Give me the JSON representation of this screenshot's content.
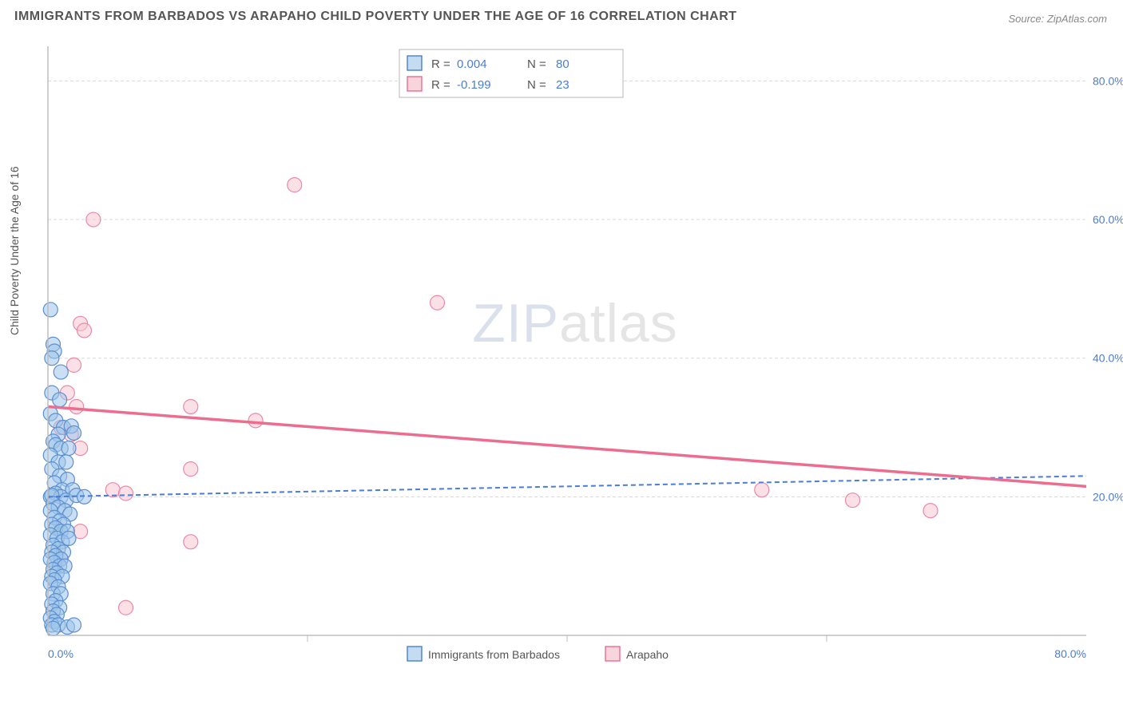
{
  "title": "IMMIGRANTS FROM BARBADOS VS ARAPAHO CHILD POVERTY UNDER THE AGE OF 16 CORRELATION CHART",
  "source": "Source: ZipAtlas.com",
  "y_axis_label": "Child Poverty Under the Age of 16",
  "watermark": {
    "a": "ZIP",
    "b": "atlas"
  },
  "chart": {
    "type": "scatter",
    "xlim": [
      0,
      80
    ],
    "ylim": [
      0,
      85
    ],
    "x_ticks": [
      0,
      80
    ],
    "x_tick_labels": [
      "0.0%",
      "80.0%"
    ],
    "x_minor_ticks": [
      20,
      40,
      60
    ],
    "y_ticks": [
      20,
      40,
      60,
      80
    ],
    "y_tick_labels": [
      "20.0%",
      "40.0%",
      "60.0%",
      "80.0%"
    ],
    "background_color": "#ffffff",
    "grid_color": "#d8d8d8",
    "axis_color": "#bdbdbd",
    "marker_radius": 9,
    "trend_blue": {
      "y_at_x0": 20.0,
      "y_at_x80": 23.0,
      "color": "#4a7dd6",
      "dash": true,
      "width": 2
    },
    "trend_pink": {
      "y_at_x0": 33.0,
      "y_at_x80": 21.5,
      "color": "#ec6d8f",
      "dash": false,
      "width": 3.5
    },
    "series": [
      {
        "name": "Immigrants from Barbados",
        "color_fill": "#9ec4ea",
        "color_stroke": "#5b8fd0",
        "R": "0.004",
        "N": "80",
        "points": [
          [
            0.2,
            47
          ],
          [
            0.4,
            42
          ],
          [
            0.5,
            41
          ],
          [
            0.3,
            40
          ],
          [
            1.0,
            38
          ],
          [
            0.3,
            35
          ],
          [
            0.9,
            34
          ],
          [
            0.2,
            32
          ],
          [
            0.6,
            31
          ],
          [
            1.2,
            30
          ],
          [
            1.8,
            30.2
          ],
          [
            0.8,
            29
          ],
          [
            2.0,
            29.2
          ],
          [
            0.4,
            28
          ],
          [
            0.6,
            27.5
          ],
          [
            1.0,
            27
          ],
          [
            1.6,
            27
          ],
          [
            0.2,
            26
          ],
          [
            0.8,
            25
          ],
          [
            1.4,
            25
          ],
          [
            0.3,
            24
          ],
          [
            0.9,
            23
          ],
          [
            1.5,
            22.5
          ],
          [
            0.5,
            22
          ],
          [
            1.1,
            21
          ],
          [
            1.9,
            21
          ],
          [
            0.2,
            20
          ],
          [
            0.6,
            20.5
          ],
          [
            1.0,
            20
          ],
          [
            1.4,
            19.5
          ],
          [
            2.2,
            20.2
          ],
          [
            2.8,
            20
          ],
          [
            0.3,
            20.2
          ],
          [
            0.4,
            19
          ],
          [
            0.8,
            18.5
          ],
          [
            1.3,
            18
          ],
          [
            0.2,
            18
          ],
          [
            1.7,
            17.5
          ],
          [
            0.5,
            17
          ],
          [
            0.9,
            16.5
          ],
          [
            1.2,
            16
          ],
          [
            0.3,
            16
          ],
          [
            0.6,
            15.5
          ],
          [
            1.0,
            15
          ],
          [
            1.5,
            15
          ],
          [
            0.2,
            14.5
          ],
          [
            0.7,
            14
          ],
          [
            1.1,
            13.5
          ],
          [
            1.6,
            14
          ],
          [
            0.4,
            13
          ],
          [
            0.8,
            12.5
          ],
          [
            1.2,
            12
          ],
          [
            0.3,
            12
          ],
          [
            0.6,
            11.5
          ],
          [
            1.0,
            11
          ],
          [
            0.2,
            11
          ],
          [
            0.5,
            10.5
          ],
          [
            0.9,
            10
          ],
          [
            1.3,
            10
          ],
          [
            0.4,
            9.5
          ],
          [
            0.7,
            9
          ],
          [
            0.3,
            8.5
          ],
          [
            1.1,
            8.5
          ],
          [
            0.5,
            8
          ],
          [
            0.2,
            7.5
          ],
          [
            0.8,
            7
          ],
          [
            0.4,
            6
          ],
          [
            1.0,
            6
          ],
          [
            0.6,
            5
          ],
          [
            0.3,
            4.5
          ],
          [
            0.9,
            4
          ],
          [
            0.4,
            3.5
          ],
          [
            0.7,
            3
          ],
          [
            0.2,
            2.5
          ],
          [
            0.5,
            2
          ],
          [
            0.3,
            1.5
          ],
          [
            0.8,
            1.5
          ],
          [
            0.4,
            1
          ],
          [
            1.5,
            1.2
          ],
          [
            2.0,
            1.5
          ]
        ]
      },
      {
        "name": "Arapaho",
        "color_fill": "#f7c9d4",
        "color_stroke": "#e98aa5",
        "R": "-0.199",
        "N": "23",
        "points": [
          [
            19,
            65
          ],
          [
            3.5,
            60
          ],
          [
            30,
            48
          ],
          [
            2.5,
            45
          ],
          [
            2.8,
            44
          ],
          [
            2.0,
            39
          ],
          [
            1.5,
            35
          ],
          [
            2.2,
            33
          ],
          [
            11,
            33
          ],
          [
            16,
            31
          ],
          [
            1.0,
            30
          ],
          [
            1.8,
            29
          ],
          [
            2.5,
            27
          ],
          [
            11,
            24
          ],
          [
            5,
            21
          ],
          [
            6,
            20.5
          ],
          [
            55,
            21
          ],
          [
            62,
            19.5
          ],
          [
            68,
            18
          ],
          [
            2.5,
            15
          ],
          [
            11,
            13.5
          ],
          [
            1.0,
            11
          ],
          [
            6,
            4
          ]
        ]
      }
    ]
  },
  "stat_box": {
    "rows": [
      {
        "series": 0,
        "R_label": "R =",
        "N_label": "N ="
      },
      {
        "series": 1,
        "R_label": "R =",
        "N_label": "N ="
      }
    ]
  },
  "bottom_legend": [
    {
      "series": 0
    },
    {
      "series": 1
    }
  ]
}
